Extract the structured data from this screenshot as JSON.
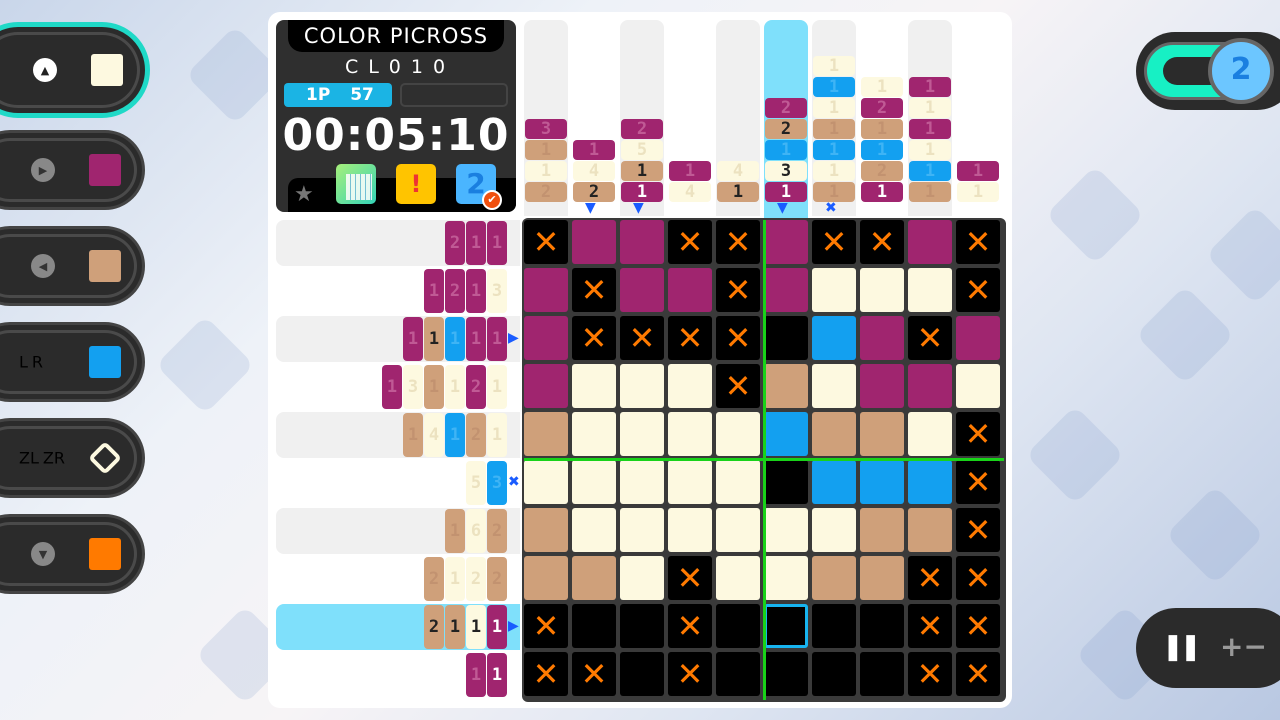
{
  "colors": {
    "C": "#fdf9e0",
    "M": "#a0256f",
    "T": "#cfa07a",
    "B": "#13a0f0",
    "K": "#000000",
    "X": "#000000",
    "accent": "#1fd9c7",
    "cursor": "#17b4f0",
    "cross": "#ff7a00"
  },
  "palette": [
    {
      "button": "up-button",
      "glyph": "▲",
      "swatch": "C",
      "selected": true
    },
    {
      "button": "right-button",
      "glyph": "▶",
      "swatch": "M"
    },
    {
      "button": "left-button",
      "glyph": "◀",
      "swatch": "T"
    },
    {
      "button": "lr-buttons",
      "keys": [
        "L",
        "R"
      ],
      "swatch": "B"
    },
    {
      "button": "zlzr-buttons",
      "keys": [
        "ZL",
        "ZR"
      ],
      "swatch": "eraser"
    },
    {
      "button": "down-button",
      "glyph": "▼",
      "swatch": "cross"
    }
  ],
  "info": {
    "title": "COLOR PICROSS",
    "puzzle_code": "CL010",
    "player": "1P",
    "score": "57",
    "timer": "00:05:10"
  },
  "icons": [
    "star-icon",
    "grid-preview-icon",
    "hint-icon",
    "layer-2-icon"
  ],
  "toggle": {
    "label": "2",
    "state": "on"
  },
  "controls": {
    "pause": "❚❚",
    "zoom": "+−"
  },
  "cursor": {
    "row": 9,
    "col": 6
  },
  "col_clues": [
    [
      [
        "M",
        3,
        0
      ],
      [
        "T",
        1,
        0
      ],
      [
        "C",
        1,
        0
      ],
      [
        "T",
        2,
        0
      ]
    ],
    [
      [
        "M",
        1,
        0
      ],
      [
        "C",
        4,
        0
      ],
      [
        "T",
        2,
        1
      ]
    ],
    [
      [
        "M",
        2,
        0
      ],
      [
        "C",
        5,
        0
      ],
      [
        "T",
        1,
        1
      ],
      [
        "M",
        1,
        1
      ]
    ],
    [
      [
        "M",
        1,
        0
      ],
      [
        "C",
        4,
        0
      ]
    ],
    [
      [
        "C",
        4,
        0
      ],
      [
        "T",
        1,
        1
      ]
    ],
    [
      [
        "M",
        2,
        0
      ],
      [
        "T",
        2,
        1
      ],
      [
        "B",
        1,
        0
      ],
      [
        "C",
        3,
        1
      ],
      [
        "M",
        1,
        1
      ]
    ],
    [
      [
        "C",
        1,
        0
      ],
      [
        "B",
        1,
        0
      ],
      [
        "C",
        1,
        0
      ],
      [
        "T",
        1,
        0
      ],
      [
        "B",
        1,
        0
      ],
      [
        "C",
        1,
        0
      ],
      [
        "T",
        1,
        0
      ]
    ],
    [
      [
        "C",
        1,
        0
      ],
      [
        "M",
        2,
        0
      ],
      [
        "T",
        1,
        0
      ],
      [
        "B",
        1,
        0
      ],
      [
        "T",
        2,
        0
      ],
      [
        "M",
        1,
        1
      ]
    ],
    [
      [
        "M",
        1,
        0
      ],
      [
        "C",
        1,
        0
      ],
      [
        "M",
        1,
        0
      ],
      [
        "C",
        1,
        0
      ],
      [
        "B",
        1,
        0
      ],
      [
        "T",
        1,
        0
      ]
    ],
    [
      [
        "M",
        1,
        0
      ],
      [
        "C",
        1,
        0
      ]
    ]
  ],
  "row_clues": [
    [
      [
        "M",
        2,
        0
      ],
      [
        "M",
        1,
        0
      ],
      [
        "M",
        1,
        0
      ]
    ],
    [
      [
        "M",
        1,
        0
      ],
      [
        "M",
        2,
        0
      ],
      [
        "M",
        1,
        0
      ],
      [
        "C",
        3,
        0
      ]
    ],
    [
      [
        "M",
        1,
        0
      ],
      [
        "T",
        1,
        1
      ],
      [
        "B",
        1,
        0
      ],
      [
        "M",
        1,
        0
      ],
      [
        "M",
        1,
        0
      ]
    ],
    [
      [
        "M",
        1,
        0
      ],
      [
        "C",
        3,
        0
      ],
      [
        "T",
        1,
        0
      ],
      [
        "C",
        1,
        0
      ],
      [
        "M",
        2,
        0
      ],
      [
        "C",
        1,
        0
      ]
    ],
    [
      [
        "T",
        1,
        0
      ],
      [
        "C",
        4,
        0
      ],
      [
        "B",
        1,
        0
      ],
      [
        "T",
        2,
        0
      ],
      [
        "C",
        1,
        0
      ]
    ],
    [
      [
        "C",
        5,
        0
      ],
      [
        "B",
        3,
        0
      ]
    ],
    [
      [
        "T",
        1,
        0
      ],
      [
        "C",
        6,
        0
      ],
      [
        "T",
        2,
        0
      ]
    ],
    [
      [
        "T",
        2,
        0
      ],
      [
        "C",
        1,
        0
      ],
      [
        "C",
        2,
        0
      ],
      [
        "T",
        2,
        0
      ]
    ],
    [
      [
        "T",
        2,
        1
      ],
      [
        "T",
        1,
        1
      ],
      [
        "C",
        1,
        1
      ],
      [
        "M",
        1,
        1
      ]
    ],
    [
      [
        "M",
        1,
        0
      ],
      [
        "M",
        1,
        1
      ]
    ]
  ],
  "col_markers": {
    "2": "arrow",
    "3": "arrow",
    "6": "arrow",
    "7": "x-arrow"
  },
  "row_markers": {
    "3": "arrow",
    "6": "x-arrow",
    "9": "arrow"
  },
  "grid": [
    "XMMXXMXXMX",
    "MXMMXMCCCX",
    "MXXXXKBMXM",
    "MCCCXTCMMC",
    "TCCCCBTTCX",
    "CCCCCKBBBX",
    "TCCCCCCTTX",
    "TTCXCCTTXX",
    "XKKXKKKKXX",
    "XXKXKKKKXX"
  ]
}
